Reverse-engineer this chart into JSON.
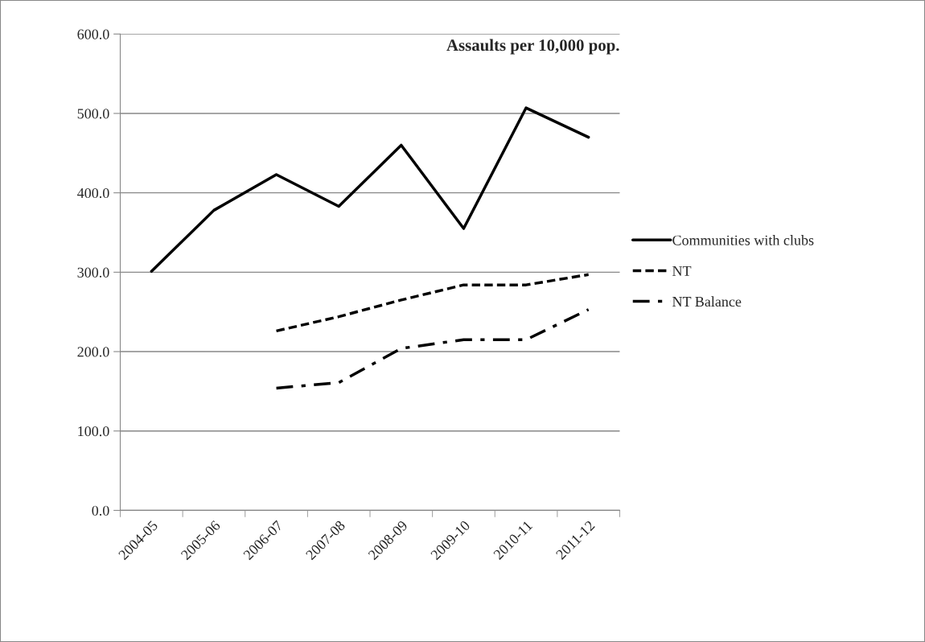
{
  "chart_data": {
    "type": "line",
    "title": "Assaults per 10,000 pop.",
    "categories": [
      "2004-05",
      "2005-06",
      "2006-07",
      "2007-08",
      "2008-09",
      "2009-10",
      "2010-11",
      "2011-12"
    ],
    "series": [
      {
        "name": "Communities with clubs",
        "color": "#000000",
        "line_style": "solid",
        "values": [
          301,
          378,
          423,
          383,
          460,
          355,
          507,
          470
        ]
      },
      {
        "name": "NT",
        "color": "#000000",
        "line_style": "dashed",
        "values": [
          null,
          null,
          226,
          244,
          265,
          284,
          284,
          297
        ]
      },
      {
        "name": "NT Balance",
        "color": "#000000",
        "line_style": "dashdot",
        "values": [
          null,
          null,
          154,
          161,
          204,
          215,
          215,
          253
        ]
      }
    ],
    "ylim": [
      0,
      600
    ],
    "yticks": [
      {
        "value": 0,
        "label": "0.0"
      },
      {
        "value": 100,
        "label": "100.0"
      },
      {
        "value": 200,
        "label": "200.0"
      },
      {
        "value": 300,
        "label": "300.0"
      },
      {
        "value": 400,
        "label": "400.0"
      },
      {
        "value": 500,
        "label": "500.0"
      },
      {
        "value": 600,
        "label": "600.0"
      }
    ],
    "grid": "y",
    "legend": "right",
    "marker": "none"
  }
}
